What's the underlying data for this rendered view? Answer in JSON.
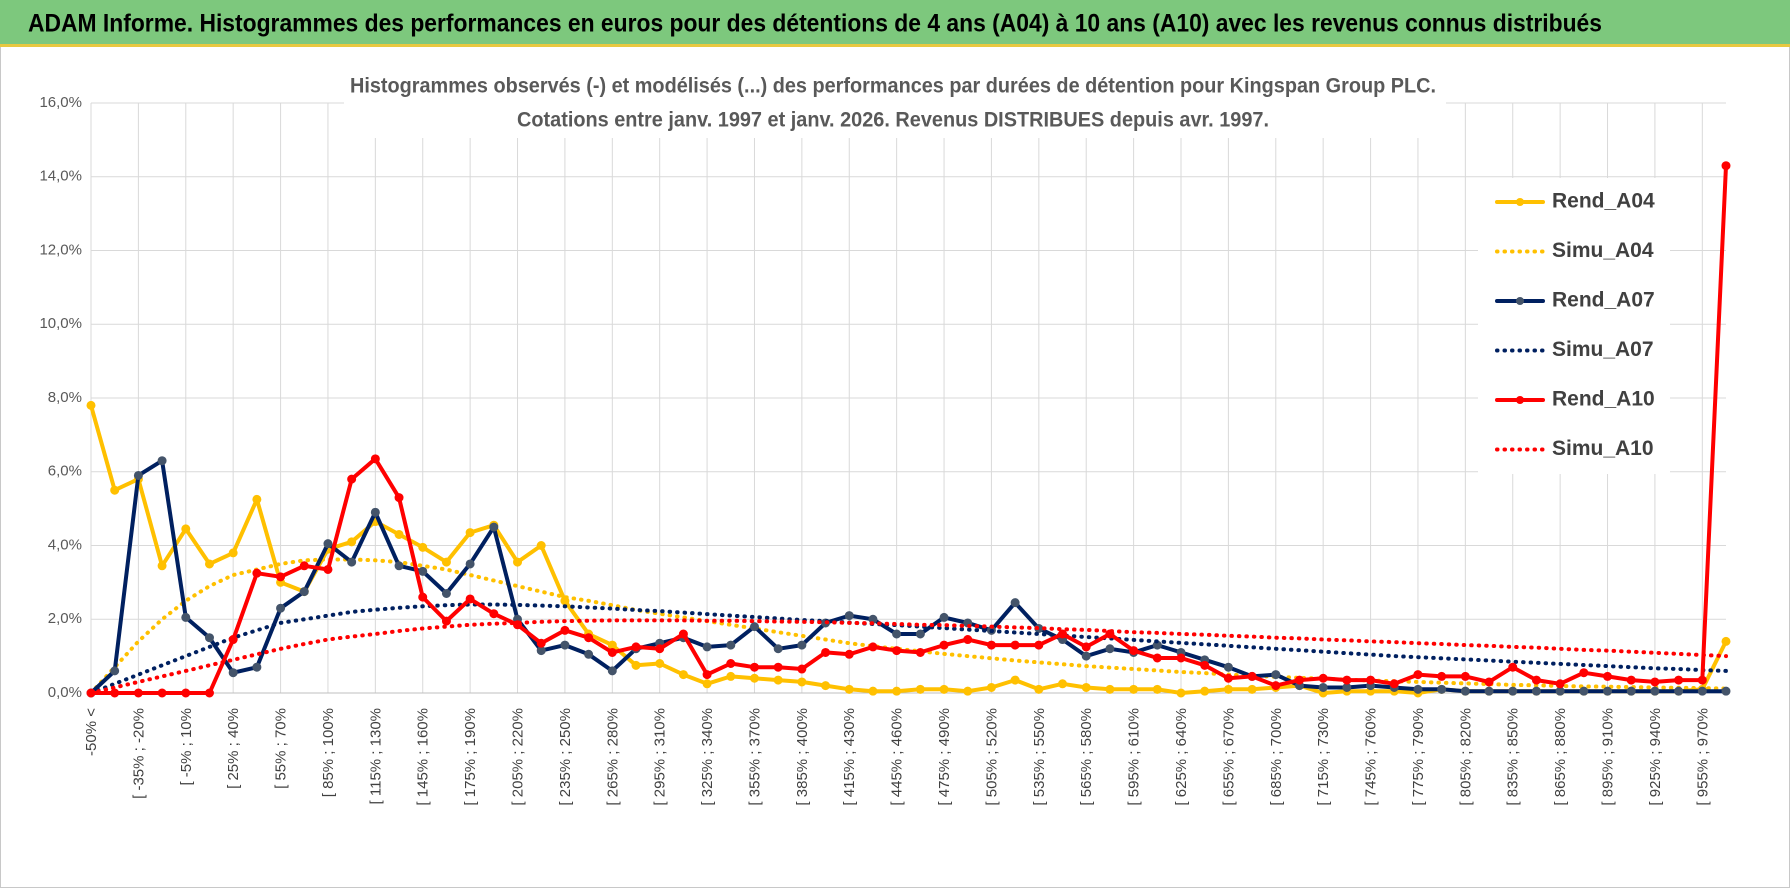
{
  "header": {
    "title": "ADAM Informe. Histogrammes des performances en euros pour des détentions de 4 ans (A04) à 10 ans (A10) avec les revenus connus distribués"
  },
  "chart_data": {
    "type": "line",
    "title": "Histogrammes observés (-) et modélisés (...) des performances par durées de détention pour Kingspan Group PLC.",
    "subtitle": "Cotations entre janv. 1997 et janv. 2026. Revenus DISTRIBUES depuis avr. 1997.",
    "categories": [
      "-50% <",
      null,
      "[ -35% ; -20%",
      null,
      "[ -5% ; 10%",
      null,
      "[ 25% ; 40%",
      null,
      "[ 55% ; 70%",
      null,
      "[ 85% ; 100%",
      null,
      "[ 115% ; 130%",
      null,
      "[ 145% ; 160%",
      null,
      "[ 175% ; 190%",
      null,
      "[ 205% ; 220%",
      null,
      "[ 235% ; 250%",
      null,
      "[ 265% ; 280%",
      null,
      "[ 295% ; 310%",
      null,
      "[ 325% ; 340%",
      null,
      "[ 355% ; 370%",
      null,
      "[ 385% ; 400%",
      null,
      "[ 415% ; 430%",
      null,
      "[ 445% ; 460%",
      null,
      "[ 475% ; 490%",
      null,
      "[ 505% ; 520%",
      null,
      "[ 535% ; 550%",
      null,
      "[ 565% ; 580%",
      null,
      "[ 595% ; 610%",
      null,
      "[ 625% ; 640%",
      null,
      "[ 655% ; 670%",
      null,
      "[ 685% ; 700%",
      null,
      "[ 715% ; 730%",
      null,
      "[ 745% ; 760%",
      null,
      "[ 775% ; 790%",
      null,
      "[ 805% ; 820%",
      null,
      "[ 835% ; 850%",
      null,
      "[ 865% ; 880%",
      null,
      "[ 895% ; 910%",
      null,
      "[ 925% ; 940%",
      null,
      "[ 955% ; 970%",
      null
    ],
    "ylim": [
      0,
      16
    ],
    "yticks": [
      {
        "value": 0,
        "label": "0,0%"
      },
      {
        "value": 2,
        "label": "2,0%"
      },
      {
        "value": 4,
        "label": "4,0%"
      },
      {
        "value": 6,
        "label": "6,0%"
      },
      {
        "value": 8,
        "label": "8,0%"
      },
      {
        "value": 10,
        "label": "10,0%"
      },
      {
        "value": 12,
        "label": "12,0%"
      },
      {
        "value": 14,
        "label": "14,0%"
      },
      {
        "value": 16,
        "label": "16,0%"
      }
    ],
    "grid": true,
    "legend": "right",
    "series": [
      {
        "name": "Rend_A04",
        "color": "#FFC000",
        "line_style": "solid",
        "markers": true,
        "values": [
          7.8,
          5.5,
          5.8,
          3.45,
          4.45,
          3.5,
          3.8,
          5.25,
          3.0,
          2.75,
          3.9,
          4.1,
          4.65,
          4.3,
          3.95,
          3.55,
          4.35,
          4.55,
          3.55,
          4.0,
          2.5,
          1.6,
          1.3,
          0.75,
          0.8,
          0.5,
          0.25,
          0.45,
          0.4,
          0.35,
          0.3,
          0.2,
          0.1,
          0.05,
          0.05,
          0.1,
          0.1,
          0.05,
          0.15,
          0.35,
          0.1,
          0.25,
          0.15,
          0.1,
          0.1,
          0.1,
          0.0,
          0.05,
          0.1,
          0.1,
          0.15,
          0.2,
          0.0,
          0.05,
          0.05,
          0.05,
          0.0,
          0.1,
          0.05,
          0.05,
          0.05,
          0.05,
          0.05,
          0.05,
          0.05,
          0.05,
          0.05,
          0.05,
          0.1,
          1.4
        ]
      },
      {
        "name": "Simu_A04",
        "color": "#FFC000",
        "line_style": "dotted",
        "markers": false,
        "values": [
          0,
          0.7,
          1.4,
          2.0,
          2.5,
          2.9,
          3.2,
          3.35,
          3.5,
          3.6,
          3.62,
          3.62,
          3.6,
          3.55,
          3.45,
          3.35,
          3.2,
          3.05,
          2.9,
          2.75,
          2.6,
          2.5,
          2.38,
          2.25,
          2.15,
          2.05,
          1.95,
          1.85,
          1.75,
          1.65,
          1.55,
          1.45,
          1.35,
          1.27,
          1.2,
          1.13,
          1.06,
          1.0,
          0.94,
          0.88,
          0.83,
          0.78,
          0.73,
          0.69,
          0.65,
          0.61,
          0.57,
          0.54,
          0.5,
          0.47,
          0.44,
          0.41,
          0.39,
          0.36,
          0.34,
          0.32,
          0.3,
          0.28,
          0.26,
          0.24,
          0.22,
          0.21,
          0.19,
          0.18,
          0.17,
          0.16,
          0.15,
          0.14,
          0.13,
          0.12
        ]
      },
      {
        "name": "Rend_A07",
        "color": "#002060",
        "marker_color": "#44546A",
        "line_style": "solid",
        "markers": true,
        "values": [
          0,
          0.6,
          5.9,
          6.3,
          2.05,
          1.5,
          0.55,
          0.7,
          2.3,
          2.75,
          4.05,
          3.55,
          4.9,
          3.45,
          3.3,
          2.7,
          3.5,
          4.5,
          2.0,
          1.15,
          1.3,
          1.05,
          0.6,
          1.2,
          1.35,
          1.5,
          1.25,
          1.3,
          1.8,
          1.2,
          1.3,
          1.9,
          2.1,
          2.0,
          1.6,
          1.6,
          2.05,
          1.9,
          1.7,
          2.45,
          1.75,
          1.45,
          1.0,
          1.2,
          1.1,
          1.3,
          1.1,
          0.9,
          0.7,
          0.45,
          0.5,
          0.2,
          0.15,
          0.15,
          0.2,
          0.15,
          0.1,
          0.1,
          0.05,
          0.05,
          0.05,
          0.05,
          0.05,
          0.05,
          0.05,
          0.05,
          0.05,
          0.05,
          0.05,
          0.05
        ]
      },
      {
        "name": "Simu_A07",
        "color": "#002060",
        "line_style": "dotted",
        "markers": false,
        "values": [
          0,
          0.25,
          0.5,
          0.75,
          1.0,
          1.25,
          1.5,
          1.7,
          1.9,
          2.0,
          2.1,
          2.2,
          2.26,
          2.31,
          2.35,
          2.38,
          2.4,
          2.4,
          2.39,
          2.37,
          2.35,
          2.32,
          2.29,
          2.25,
          2.22,
          2.18,
          2.14,
          2.1,
          2.06,
          2.02,
          1.98,
          1.95,
          1.91,
          1.87,
          1.84,
          1.8,
          1.76,
          1.72,
          1.68,
          1.64,
          1.6,
          1.56,
          1.52,
          1.48,
          1.44,
          1.4,
          1.36,
          1.32,
          1.28,
          1.24,
          1.2,
          1.16,
          1.12,
          1.08,
          1.04,
          1.0,
          0.97,
          0.94,
          0.91,
          0.88,
          0.85,
          0.82,
          0.79,
          0.76,
          0.73,
          0.7,
          0.67,
          0.65,
          0.62,
          0.6
        ]
      },
      {
        "name": "Rend_A10",
        "color": "#FF0000",
        "line_style": "solid",
        "markers": true,
        "values": [
          0,
          0,
          0,
          0,
          0,
          0,
          1.45,
          3.25,
          3.15,
          3.45,
          3.35,
          5.8,
          6.35,
          5.3,
          2.6,
          1.95,
          2.55,
          2.15,
          1.85,
          1.35,
          1.7,
          1.5,
          1.1,
          1.25,
          1.2,
          1.6,
          0.5,
          0.8,
          0.7,
          0.7,
          0.65,
          1.1,
          1.05,
          1.25,
          1.15,
          1.1,
          1.3,
          1.45,
          1.3,
          1.3,
          1.3,
          1.6,
          1.25,
          1.6,
          1.15,
          0.95,
          0.95,
          0.75,
          0.4,
          0.45,
          0.2,
          0.35,
          0.4,
          0.35,
          0.35,
          0.25,
          0.5,
          0.45,
          0.45,
          0.3,
          0.7,
          0.35,
          0.25,
          0.55,
          0.45,
          0.35,
          0.3,
          0.35,
          0.35,
          14.3
        ]
      },
      {
        "name": "Simu_A10",
        "color": "#FF0000",
        "line_style": "dotted",
        "markers": false,
        "values": [
          0,
          0.15,
          0.3,
          0.45,
          0.6,
          0.75,
          0.9,
          1.05,
          1.2,
          1.33,
          1.45,
          1.53,
          1.6,
          1.68,
          1.75,
          1.8,
          1.85,
          1.88,
          1.9,
          1.93,
          1.95,
          1.96,
          1.97,
          1.97,
          1.97,
          1.97,
          1.96,
          1.96,
          1.95,
          1.94,
          1.93,
          1.92,
          1.9,
          1.89,
          1.87,
          1.85,
          1.84,
          1.82,
          1.8,
          1.78,
          1.76,
          1.73,
          1.71,
          1.68,
          1.65,
          1.63,
          1.6,
          1.58,
          1.55,
          1.53,
          1.5,
          1.48,
          1.45,
          1.43,
          1.4,
          1.38,
          1.35,
          1.33,
          1.3,
          1.28,
          1.25,
          1.23,
          1.2,
          1.17,
          1.15,
          1.12,
          1.09,
          1.06,
          1.03,
          1.0
        ]
      }
    ]
  }
}
